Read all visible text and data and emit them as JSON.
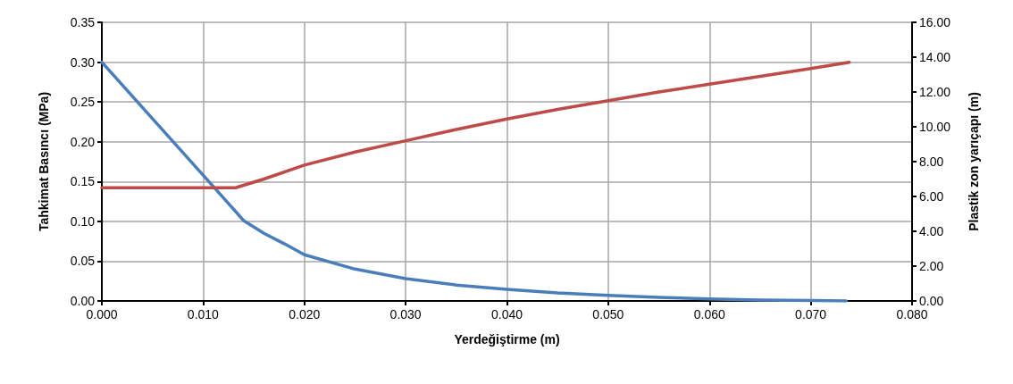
{
  "chart_data": {
    "type": "line",
    "xlabel": "Yerdeğiştirme (m)",
    "ylabel": "Tahkimat Basıncı (MPa)",
    "y2label": "Plastik zon yarıçapı (m)",
    "xlim": [
      0,
      0.08
    ],
    "xticks": [
      {
        "value": 0,
        "label": "0.000"
      },
      {
        "value": 0.01,
        "label": "0.010"
      },
      {
        "value": 0.02,
        "label": "0.020"
      },
      {
        "value": 0.03,
        "label": "0.030"
      },
      {
        "value": 0.04,
        "label": "0.040"
      },
      {
        "value": 0.05,
        "label": "0.050"
      },
      {
        "value": 0.06,
        "label": "0.060"
      },
      {
        "value": 0.07,
        "label": "0.070"
      },
      {
        "value": 0.08,
        "label": "0.080"
      }
    ],
    "ylim": [
      0,
      0.35
    ],
    "yticks": [
      {
        "value": 0,
        "label": "0.00"
      },
      {
        "value": 0.05,
        "label": "0.05"
      },
      {
        "value": 0.1,
        "label": "0.10"
      },
      {
        "value": 0.15,
        "label": "0.15"
      },
      {
        "value": 0.2,
        "label": "0.20"
      },
      {
        "value": 0.25,
        "label": "0.25"
      },
      {
        "value": 0.3,
        "label": "0.30"
      },
      {
        "value": 0.35,
        "label": "0.35"
      }
    ],
    "y2lim": [
      0,
      16
    ],
    "y2ticks": [
      {
        "value": 0,
        "label": "0.00"
      },
      {
        "value": 2,
        "label": "2.00"
      },
      {
        "value": 4,
        "label": "4.00"
      },
      {
        "value": 6,
        "label": "6.00"
      },
      {
        "value": 8,
        "label": "8.00"
      },
      {
        "value": 10,
        "label": "10.00"
      },
      {
        "value": 12,
        "label": "12.00"
      },
      {
        "value": 14,
        "label": "14.00"
      },
      {
        "value": 16,
        "label": "16.00"
      }
    ],
    "grid": true,
    "marker": "none",
    "line_style": "solid",
    "series": [
      {
        "color": "#4a7ebb",
        "x": [
          0,
          0.005,
          0.01,
          0.014,
          0.016,
          0.018,
          0.02,
          0.025,
          0.03,
          0.035,
          0.04,
          0.045,
          0.05,
          0.055,
          0.06,
          0.065,
          0.07,
          0.0735
        ],
        "values": [
          0.3,
          0.229,
          0.158,
          0.101,
          0.085,
          0.072,
          0.058,
          0.04,
          0.028,
          0.02,
          0.0146,
          0.01,
          0.007,
          0.0045,
          0.0025,
          0.0012,
          0.0005,
          0
        ]
      },
      {
        "color": "#be4b48",
        "axis": "y2",
        "x": [
          0,
          0.0132,
          0.016,
          0.02,
          0.025,
          0.03,
          0.035,
          0.04,
          0.045,
          0.05,
          0.055,
          0.06,
          0.065,
          0.07,
          0.0738
        ],
        "values": [
          6.5,
          6.5,
          7.0,
          7.8,
          8.55,
          9.2,
          9.85,
          10.45,
          11.0,
          11.5,
          12.0,
          12.45,
          12.9,
          13.35,
          13.7
        ]
      }
    ]
  }
}
